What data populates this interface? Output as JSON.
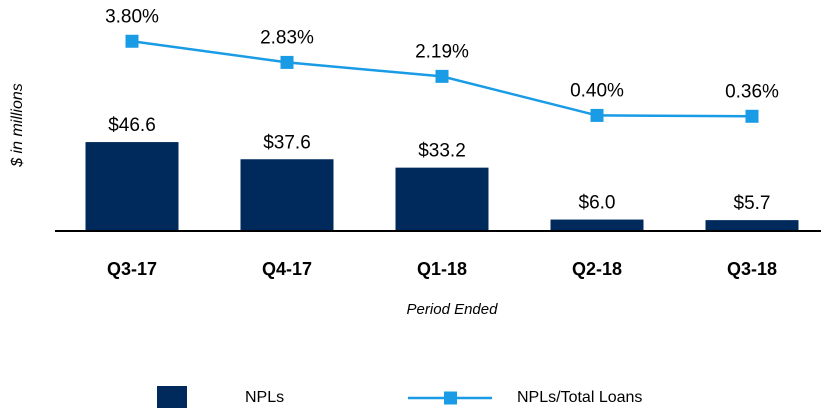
{
  "chart_data": {
    "type": "bar",
    "categories": [
      "Q3-17",
      "Q4-17",
      "Q1-18",
      "Q2-18",
      "Q3-18"
    ],
    "x_label": "Period Ended",
    "y_label": "$ in millions",
    "ylim": [
      0,
      120
    ],
    "y2lim": [
      -4.9,
      5.6
    ],
    "legend": "bottom",
    "series": [
      {
        "name": "NPLs",
        "type": "bar",
        "color": "#002a5c",
        "values": [
          46.6,
          37.6,
          33.2,
          6.0,
          5.7
        ],
        "value_labels": [
          "$46.6",
          "$37.6",
          "$33.2",
          "$6.0",
          "$5.7"
        ]
      },
      {
        "name": "NPLs/Total Loans",
        "type": "line",
        "axis": "y2",
        "color": "#1a9be6",
        "values": [
          3.8,
          2.83,
          2.19,
          0.4,
          0.36
        ],
        "value_labels": [
          "3.80%",
          "2.83%",
          "2.19%",
          "0.40%",
          "0.36%"
        ]
      }
    ]
  }
}
